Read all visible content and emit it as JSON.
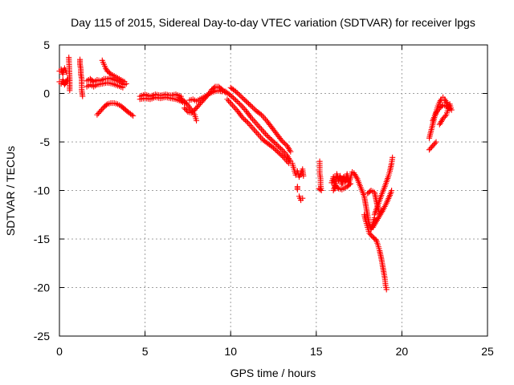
{
  "chart_data": {
    "type": "scatter",
    "title": "Day 115 of 2015, Sidereal Day-to-day VTEC variation (SDTVAR) for receiver lpgs",
    "xlabel": "GPS time / hours",
    "ylabel": "SDTVAR / TECUs",
    "xlim": [
      0,
      25
    ],
    "ylim": [
      -25,
      5
    ],
    "xticks": [
      0,
      5,
      10,
      15,
      20,
      25
    ],
    "yticks": [
      5,
      0,
      -5,
      -10,
      -15,
      -20,
      -25
    ],
    "grid": true,
    "legend": "none",
    "marker": "plus",
    "color": "#ff0000",
    "series": [
      {
        "segments": [
          [
            [
              0.0,
              2.3
            ],
            [
              0.1,
              2.5
            ],
            [
              0.2,
              2.0
            ],
            [
              0.3,
              2.6
            ],
            [
              0.4,
              2.2
            ]
          ],
          [
            [
              0.0,
              1.2
            ],
            [
              0.1,
              1.0
            ],
            [
              0.2,
              1.4
            ],
            [
              0.3,
              0.9
            ],
            [
              0.4,
              1.2
            ],
            [
              0.5,
              1.5
            ]
          ],
          [
            [
              0.55,
              3.7
            ],
            [
              0.6,
              1.5
            ],
            [
              0.6,
              0.3
            ]
          ],
          [
            [
              1.2,
              3.5
            ],
            [
              1.2,
              3.0
            ],
            [
              1.25,
              2.5
            ],
            [
              1.25,
              2.0
            ],
            [
              1.3,
              1.5
            ],
            [
              1.3,
              1.0
            ],
            [
              1.3,
              0.4
            ],
            [
              1.35,
              -0.3
            ]
          ],
          [
            [
              1.6,
              1.3
            ],
            [
              1.8,
              1.5
            ],
            [
              2.0,
              1.2
            ],
            [
              2.2,
              1.4
            ],
            [
              2.4,
              1.3
            ],
            [
              2.6,
              1.5
            ],
            [
              2.8,
              1.5
            ],
            [
              3.0,
              1.6
            ],
            [
              3.2,
              1.4
            ],
            [
              3.4,
              1.3
            ],
            [
              3.6,
              1.1
            ],
            [
              3.8,
              0.9
            ]
          ],
          [
            [
              1.6,
              0.7
            ],
            [
              1.8,
              0.9
            ],
            [
              2.0,
              0.7
            ],
            [
              2.2,
              0.9
            ],
            [
              2.5,
              1.0
            ],
            [
              2.8,
              1.1
            ],
            [
              3.1,
              1.0
            ],
            [
              3.4,
              0.8
            ],
            [
              3.7,
              0.6
            ]
          ],
          [
            [
              2.5,
              3.4
            ],
            [
              2.6,
              3.0
            ],
            [
              2.7,
              2.6
            ],
            [
              2.8,
              2.3
            ],
            [
              3.0,
              2.0
            ],
            [
              3.2,
              1.8
            ],
            [
              3.4,
              1.6
            ],
            [
              3.6,
              1.4
            ],
            [
              3.8,
              1.2
            ],
            [
              3.9,
              1.0
            ]
          ],
          [
            [
              2.2,
              -2.2
            ],
            [
              2.4,
              -1.8
            ],
            [
              2.6,
              -1.4
            ],
            [
              2.8,
              -1.1
            ],
            [
              3.0,
              -1.0
            ],
            [
              3.2,
              -1.0
            ],
            [
              3.4,
              -1.1
            ],
            [
              3.6,
              -1.3
            ],
            [
              3.8,
              -1.6
            ],
            [
              4.0,
              -1.9
            ],
            [
              4.3,
              -2.3
            ]
          ],
          [
            [
              4.7,
              -0.3
            ],
            [
              5.0,
              -0.1
            ],
            [
              5.3,
              -0.3
            ],
            [
              5.6,
              -0.1
            ],
            [
              5.9,
              -0.2
            ],
            [
              6.2,
              -0.1
            ],
            [
              6.5,
              -0.2
            ],
            [
              6.8,
              -0.1
            ],
            [
              7.1,
              -0.3
            ]
          ],
          [
            [
              4.7,
              -0.6
            ],
            [
              5.0,
              -0.5
            ],
            [
              5.3,
              -0.6
            ],
            [
              5.6,
              -0.4
            ],
            [
              5.9,
              -0.5
            ],
            [
              6.2,
              -0.4
            ],
            [
              6.5,
              -0.5
            ],
            [
              6.8,
              -0.6
            ],
            [
              7.1,
              -0.8
            ],
            [
              7.3,
              -1.0
            ]
          ],
          [
            [
              7.0,
              -0.4
            ],
            [
              7.3,
              -0.8
            ],
            [
              7.5,
              -1.2
            ],
            [
              7.7,
              -1.7
            ],
            [
              7.9,
              -2.2
            ],
            [
              8.0,
              -2.8
            ]
          ],
          [
            [
              7.3,
              -1.5
            ],
            [
              7.5,
              -1.9
            ],
            [
              7.7,
              -2.0
            ],
            [
              7.9,
              -1.7
            ],
            [
              8.1,
              -1.3
            ],
            [
              8.3,
              -0.9
            ],
            [
              8.5,
              -0.5
            ],
            [
              8.7,
              -0.1
            ],
            [
              8.9,
              0.4
            ],
            [
              9.1,
              0.7
            ],
            [
              9.3,
              0.7
            ],
            [
              9.5,
              0.4
            ],
            [
              9.7,
              0.1
            ]
          ],
          [
            [
              7.6,
              -0.7
            ],
            [
              7.8,
              -0.6
            ],
            [
              8.0,
              -0.8
            ],
            [
              8.3,
              -0.5
            ],
            [
              8.6,
              -0.2
            ],
            [
              8.9,
              0.1
            ],
            [
              9.2,
              0.3
            ],
            [
              9.5,
              0.2
            ]
          ],
          [
            [
              9.7,
              0.2
            ],
            [
              10.0,
              -0.2
            ],
            [
              10.3,
              -0.7
            ],
            [
              10.6,
              -1.2
            ],
            [
              10.9,
              -1.8
            ],
            [
              11.2,
              -2.5
            ],
            [
              11.5,
              -3.1
            ],
            [
              11.8,
              -3.7
            ],
            [
              12.1,
              -4.3
            ],
            [
              12.4,
              -4.8
            ],
            [
              12.7,
              -5.3
            ],
            [
              13.0,
              -5.8
            ],
            [
              13.3,
              -6.4
            ],
            [
              13.5,
              -7.0
            ]
          ],
          [
            [
              10.0,
              0.6
            ],
            [
              10.3,
              0.2
            ],
            [
              10.6,
              -0.3
            ],
            [
              10.9,
              -0.8
            ],
            [
              11.2,
              -1.3
            ],
            [
              11.5,
              -1.8
            ],
            [
              11.8,
              -2.2
            ],
            [
              12.1,
              -2.8
            ],
            [
              12.4,
              -3.5
            ],
            [
              12.7,
              -4.2
            ],
            [
              13.0,
              -4.9
            ],
            [
              13.3,
              -5.4
            ],
            [
              13.5,
              -6.0
            ]
          ],
          [
            [
              9.8,
              -0.6
            ],
            [
              10.1,
              -1.2
            ],
            [
              10.4,
              -1.8
            ],
            [
              10.7,
              -2.5
            ],
            [
              11.0,
              -3.0
            ],
            [
              11.3,
              -3.6
            ],
            [
              11.6,
              -4.2
            ],
            [
              11.9,
              -4.8
            ],
            [
              12.2,
              -5.2
            ],
            [
              12.5,
              -5.6
            ],
            [
              12.8,
              -6.1
            ],
            [
              13.1,
              -6.6
            ],
            [
              13.4,
              -7.2
            ]
          ],
          [
            [
              13.6,
              -7.2
            ],
            [
              13.7,
              -7.8
            ],
            [
              13.8,
              -8.4
            ],
            [
              13.9,
              -8.0
            ],
            [
              14.0,
              -8.6
            ],
            [
              14.1,
              -8.2
            ],
            [
              14.2,
              -7.8
            ],
            [
              14.25,
              -8.5
            ]
          ],
          [
            [
              13.9,
              -9.6
            ],
            [
              13.9,
              -9.9
            ]
          ],
          [
            [
              14.0,
              -10.6
            ],
            [
              14.1,
              -11.0
            ],
            [
              14.2,
              -10.8
            ]
          ],
          [
            [
              15.2,
              -7.0
            ],
            [
              15.2,
              -7.6
            ],
            [
              15.2,
              -8.2
            ],
            [
              15.25,
              -8.8
            ],
            [
              15.25,
              -9.4
            ],
            [
              15.3,
              -10.0
            ],
            [
              15.15,
              -9.8
            ]
          ],
          [
            [
              15.9,
              -9.2
            ],
            [
              16.0,
              -8.6
            ],
            [
              16.1,
              -9.8
            ],
            [
              16.2,
              -8.3
            ],
            [
              16.3,
              -9.0
            ],
            [
              16.4,
              -8.5
            ],
            [
              16.5,
              -9.4
            ],
            [
              16.6,
              -8.6
            ],
            [
              16.7,
              -9.1
            ],
            [
              16.8,
              -8.3
            ],
            [
              16.9,
              -9.2
            ],
            [
              17.0,
              -8.7
            ],
            [
              17.1,
              -8.1
            ]
          ],
          [
            [
              16.0,
              -10.0
            ],
            [
              16.1,
              -9.5
            ],
            [
              16.3,
              -9.8
            ],
            [
              16.5,
              -9.9
            ],
            [
              16.8,
              -9.6
            ],
            [
              17.0,
              -9.3
            ]
          ],
          [
            [
              17.2,
              -8.2
            ],
            [
              17.4,
              -8.8
            ],
            [
              17.6,
              -9.7
            ],
            [
              17.8,
              -10.6
            ],
            [
              17.9,
              -11.6
            ],
            [
              18.0,
              -12.6
            ],
            [
              18.1,
              -13.5
            ],
            [
              18.2,
              -14.0
            ],
            [
              18.3,
              -13.5
            ],
            [
              18.4,
              -12.8
            ]
          ],
          [
            [
              17.8,
              -12.5
            ],
            [
              17.9,
              -13.2
            ],
            [
              18.0,
              -13.8
            ],
            [
              18.1,
              -14.4
            ],
            [
              18.3,
              -14.8
            ],
            [
              18.5,
              -15.1
            ],
            [
              18.6,
              -15.6
            ],
            [
              18.7,
              -16.2
            ],
            [
              18.8,
              -17.0
            ],
            [
              18.9,
              -18.0
            ],
            [
              19.0,
              -19.0
            ],
            [
              19.05,
              -19.8
            ],
            [
              19.1,
              -20.2
            ]
          ],
          [
            [
              18.0,
              -10.3
            ],
            [
              18.2,
              -10.0
            ],
            [
              18.4,
              -10.2
            ],
            [
              18.5,
              -11.0
            ],
            [
              18.6,
              -11.8
            ],
            [
              18.7,
              -12.4
            ],
            [
              18.8,
              -12.0
            ]
          ],
          [
            [
              18.4,
              -12.5
            ],
            [
              18.6,
              -11.5
            ],
            [
              18.8,
              -10.5
            ],
            [
              19.0,
              -9.6
            ],
            [
              19.2,
              -8.6
            ],
            [
              19.3,
              -8.0
            ],
            [
              19.4,
              -7.2
            ],
            [
              19.45,
              -6.6
            ]
          ],
          [
            [
              18.3,
              -13.8
            ],
            [
              18.5,
              -13.2
            ],
            [
              18.7,
              -12.6
            ],
            [
              18.9,
              -12.0
            ],
            [
              19.1,
              -11.3
            ],
            [
              19.3,
              -10.5
            ],
            [
              19.4,
              -10.0
            ]
          ],
          [
            [
              21.6,
              -5.8
            ],
            [
              21.8,
              -5.4
            ],
            [
              22.0,
              -5.0
            ]
          ],
          [
            [
              21.6,
              -4.6
            ],
            [
              21.7,
              -3.9
            ],
            [
              21.8,
              -3.2
            ],
            [
              21.9,
              -2.5
            ],
            [
              22.0,
              -1.9
            ],
            [
              22.1,
              -1.3
            ],
            [
              22.2,
              -0.9
            ],
            [
              22.3,
              -0.6
            ],
            [
              22.4,
              -0.4
            ],
            [
              22.5,
              -0.6
            ],
            [
              22.6,
              -0.9
            ],
            [
              22.7,
              -1.2
            ]
          ],
          [
            [
              21.8,
              -2.8
            ],
            [
              22.0,
              -2.0
            ],
            [
              22.2,
              -1.5
            ],
            [
              22.4,
              -1.2
            ],
            [
              22.6,
              -1.3
            ],
            [
              22.8,
              -1.6
            ]
          ],
          [
            [
              22.2,
              -3.2
            ],
            [
              22.4,
              -2.6
            ],
            [
              22.6,
              -2.2
            ],
            [
              22.7,
              -1.6
            ],
            [
              22.8,
              -1.1
            ],
            [
              22.9,
              -1.7
            ]
          ]
        ]
      }
    ]
  }
}
